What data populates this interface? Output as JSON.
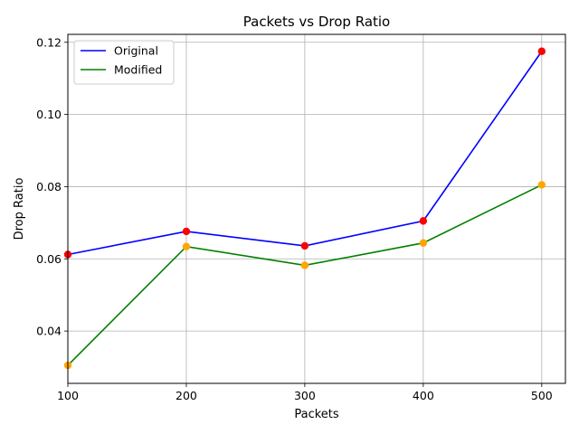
{
  "chart_data": {
    "type": "line",
    "title": "Packets vs Drop Ratio",
    "xlabel": "Packets",
    "ylabel": "Drop Ratio",
    "x": [
      100,
      200,
      300,
      400,
      500
    ],
    "xlim": [
      100,
      520
    ],
    "ylim": [
      0.0255,
      0.1222
    ],
    "xticks": [
      100,
      200,
      300,
      400,
      500
    ],
    "yticks": [
      0.04,
      0.06,
      0.08,
      0.1,
      0.12
    ],
    "ytick_labels": [
      "0.04",
      "0.06",
      "0.08",
      "0.10",
      "0.12"
    ],
    "grid": true,
    "legend_position": "top-left",
    "series": [
      {
        "name": "Original",
        "values": [
          0.0612,
          0.0676,
          0.0636,
          0.0705,
          0.1175
        ],
        "line_color": "#0000ff",
        "marker_color": "#ff0000"
      },
      {
        "name": "Modified",
        "values": [
          0.0305,
          0.0634,
          0.0582,
          0.0644,
          0.0805
        ],
        "line_color": "#008000",
        "marker_color": "#ffa500"
      }
    ]
  }
}
